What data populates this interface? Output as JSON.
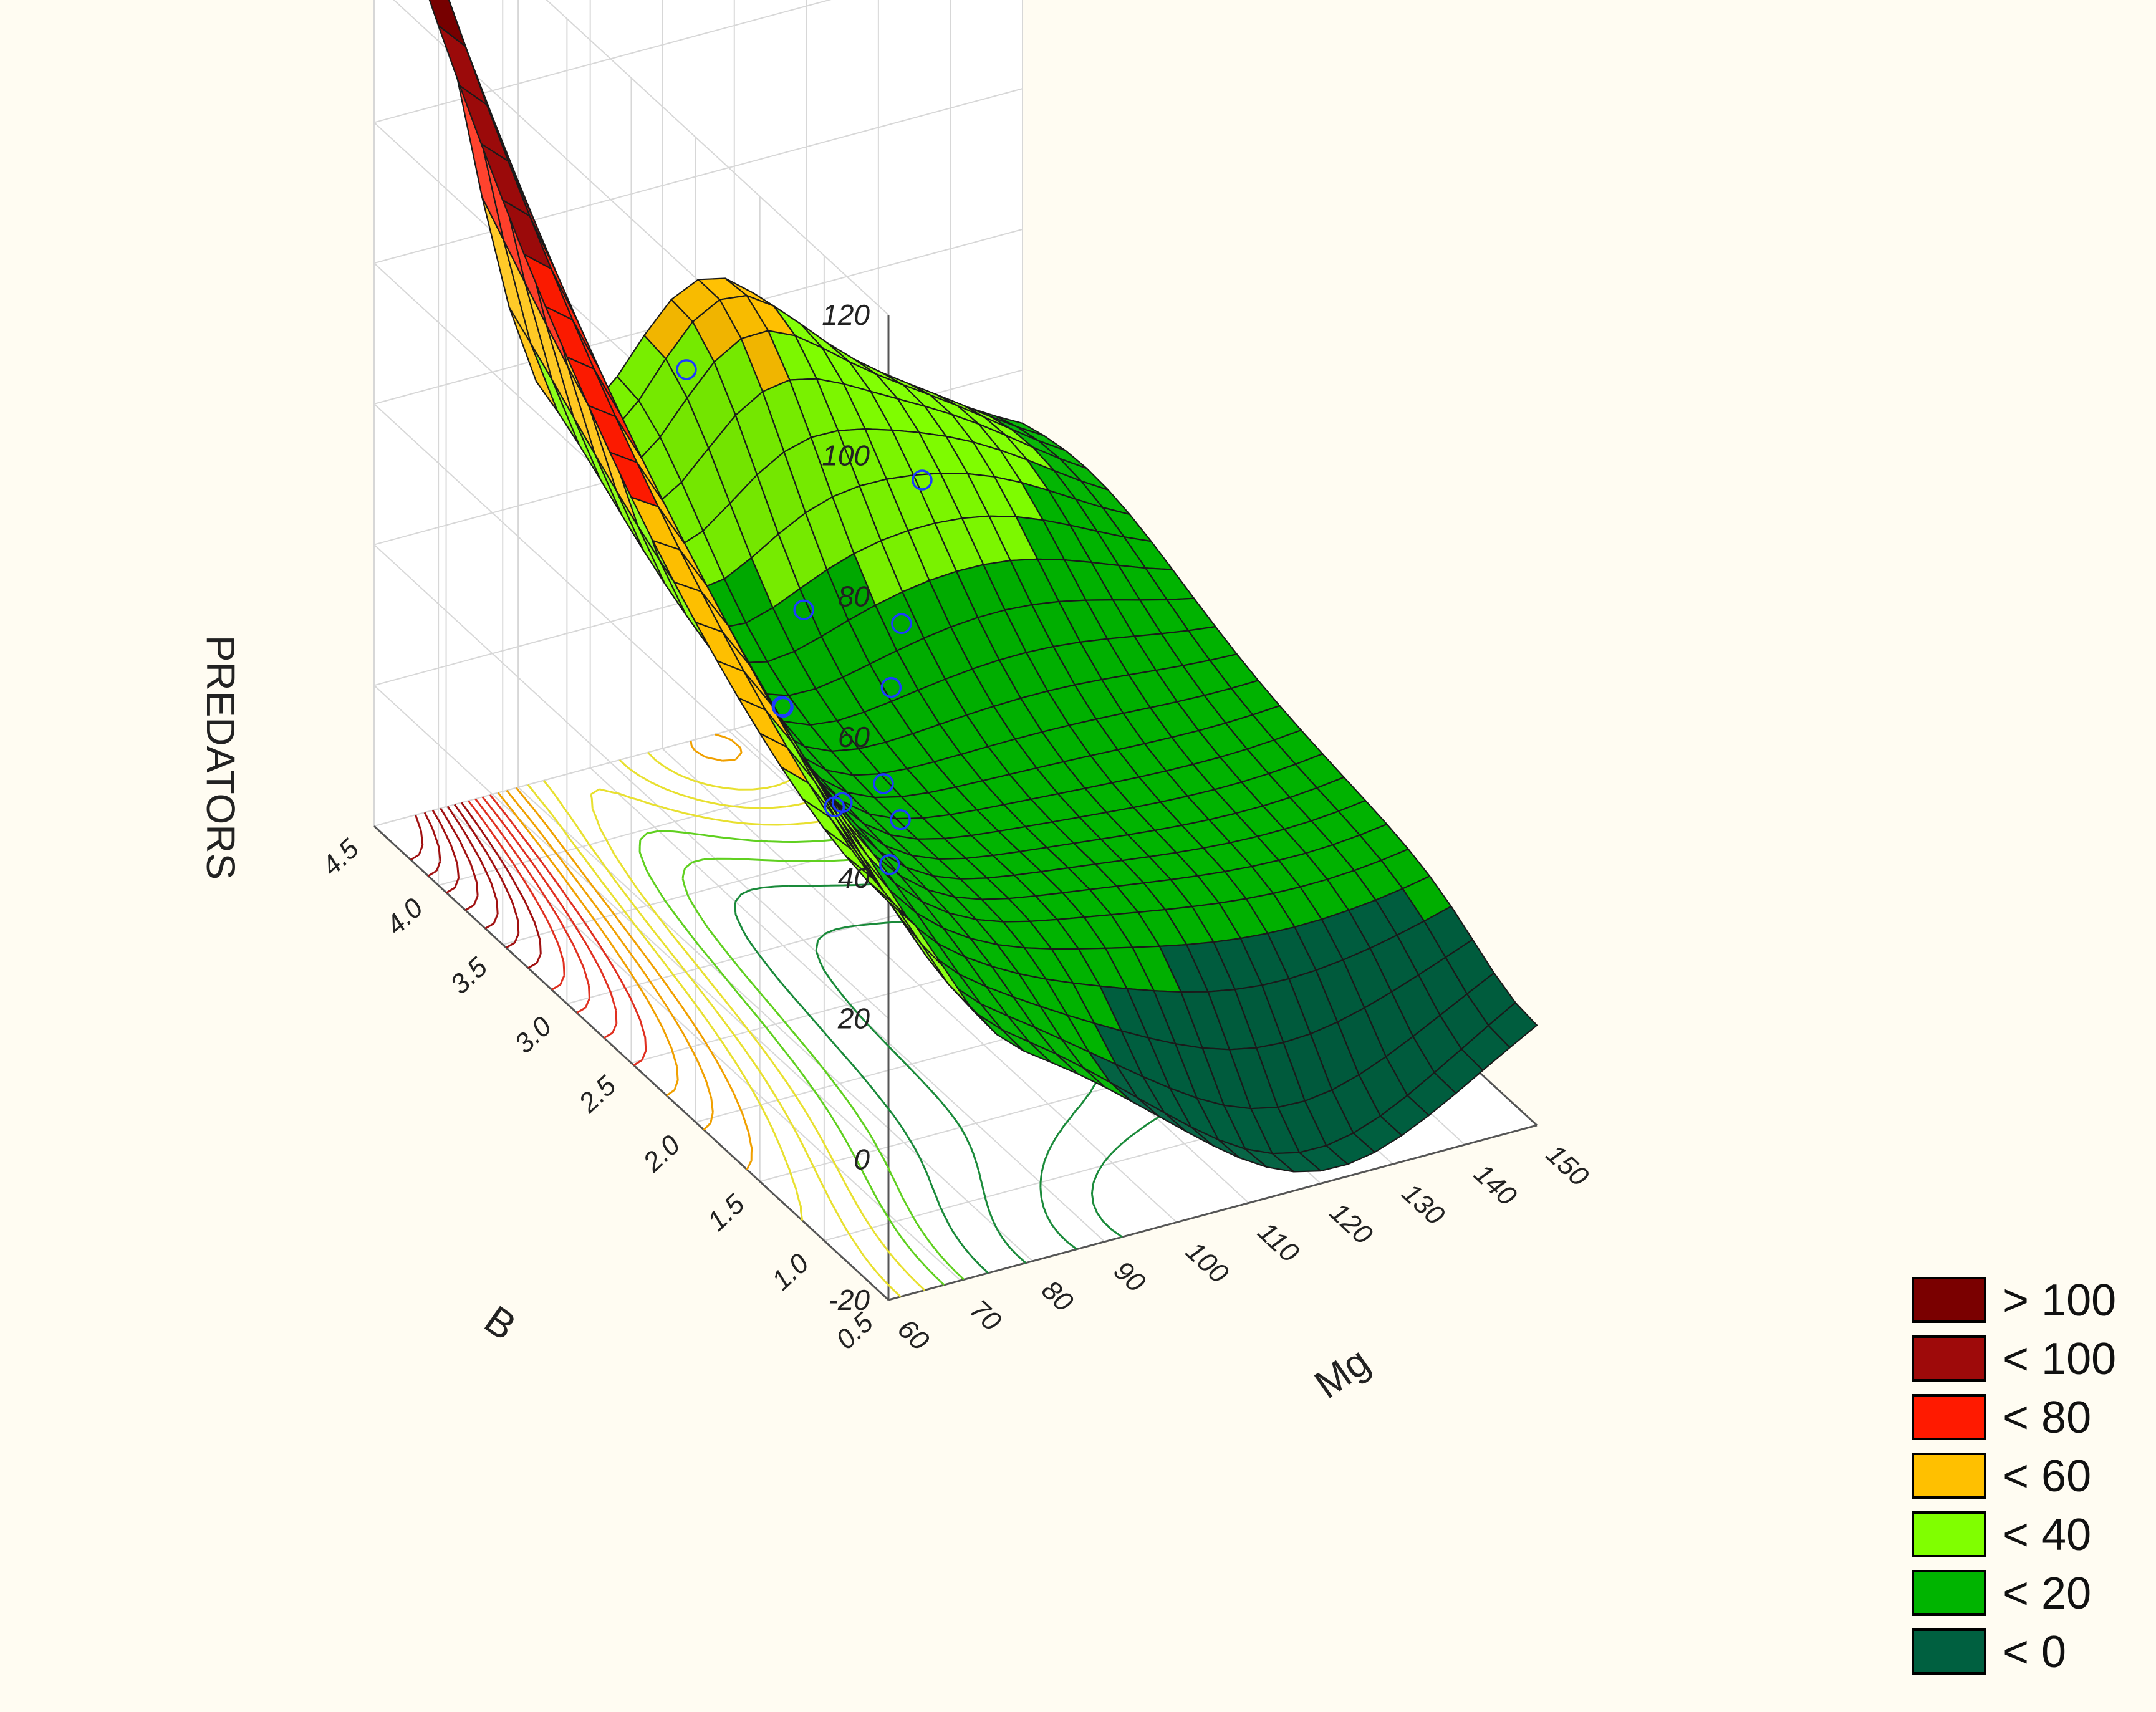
{
  "chart_data": {
    "type": "surface3d",
    "title": "",
    "xlabel": "Mg",
    "ylabel": "B",
    "zlabel": "PREDATORS",
    "xlim": [
      60,
      150
    ],
    "ylim": [
      0.5,
      4.5
    ],
    "zlim": [
      -20,
      120
    ],
    "x_ticks": [
      "60",
      "70",
      "80",
      "90",
      "100",
      "110",
      "120",
      "130",
      "140",
      "150"
    ],
    "y_ticks": [
      "0.5",
      "1.0",
      "1.5",
      "2.0",
      "2.5",
      "3.0",
      "3.5",
      "4.0",
      "4.5"
    ],
    "z_ticks": [
      "-20",
      "0",
      "20",
      "40",
      "60",
      "80",
      "100",
      "120"
    ],
    "legend": [
      {
        "label": "> 100",
        "color": "#7a0000"
      },
      {
        "label": "< 100",
        "color": "#9e0a0a"
      },
      {
        "label": "< 80",
        "color": "#ff1a00"
      },
      {
        "label": "< 60",
        "color": "#ffc000"
      },
      {
        "label": "< 40",
        "color": "#80ff00"
      },
      {
        "label": "< 20",
        "color": "#00b400"
      },
      {
        "label": "< 0",
        "color": "#006040"
      }
    ],
    "observed_points": [
      {
        "mg": 65,
        "b": 1.2,
        "predators": 10
      },
      {
        "mg": 75,
        "b": 1.7,
        "predators": 5
      },
      {
        "mg": 78,
        "b": 1.5,
        "predators": 3
      },
      {
        "mg": 72,
        "b": 2.0,
        "predators": 8
      },
      {
        "mg": 92,
        "b": 2.2,
        "predators": 8
      },
      {
        "mg": 95,
        "b": 2.5,
        "predators": 5
      },
      {
        "mg": 90,
        "b": 3.0,
        "predators": 22
      },
      {
        "mg": 105,
        "b": 3.0,
        "predators": 8
      },
      {
        "mg": 100,
        "b": 3.4,
        "predators": 18
      },
      {
        "mg": 110,
        "b": 3.2,
        "predators": 4
      },
      {
        "mg": 98,
        "b": 4.2,
        "predators": 22
      },
      {
        "mg": 120,
        "b": 3.6,
        "predators": 6
      }
    ]
  }
}
